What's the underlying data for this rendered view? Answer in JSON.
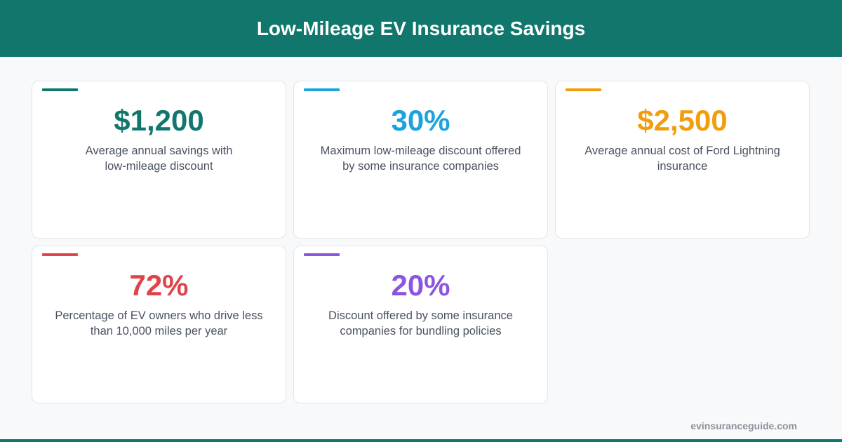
{
  "header": {
    "title": "Low-Mileage EV Insurance Savings"
  },
  "colors": {
    "header_bg": "#11776d",
    "teal": "#11776d",
    "blue": "#1ba3dc",
    "orange": "#f29e0c",
    "red": "#e0434a",
    "purple": "#8c55e0"
  },
  "stats": [
    {
      "value": "$1,200",
      "line1": "Average annual savings with",
      "line2": "low-mileage discount",
      "color": "#11776d"
    },
    {
      "value": "30%",
      "line1": "Maximum low-mileage discount offered",
      "line2": "by some insurance companies",
      "color": "#1ba3dc"
    },
    {
      "value": "$2,500",
      "line1": "Average annual cost of Ford Lightning",
      "line2": "insurance",
      "color": "#f29e0c"
    },
    {
      "value": "72%",
      "line1": "Percentage of EV owners who drive less",
      "line2": "than 10,000 miles per year",
      "color": "#e0434a"
    },
    {
      "value": "20%",
      "line1": "Discount offered by some insurance",
      "line2": "companies for bundling policies",
      "color": "#8c55e0"
    }
  ],
  "footer": {
    "url": "evinsuranceguide.com"
  }
}
